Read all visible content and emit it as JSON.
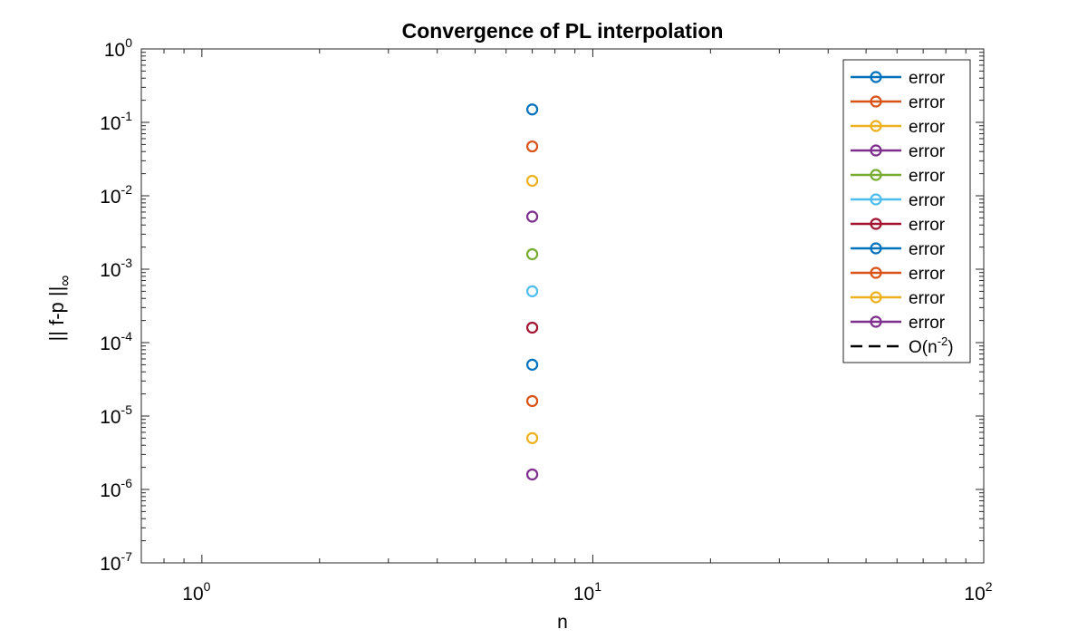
{
  "chart_data": {
    "type": "scatter",
    "title": "Convergence of PL interpolation",
    "xlabel": "n",
    "ylabel": {
      "text": "|| f-p ||",
      "subscript": "∞"
    },
    "xscale": "log",
    "yscale": "log",
    "xlim": [
      0.7,
      100
    ],
    "ylim": [
      1e-07,
      1
    ],
    "grid": false,
    "x_ticks": [
      {
        "value": 1,
        "base": "10",
        "exp": "0"
      },
      {
        "value": 10,
        "base": "10",
        "exp": "1"
      },
      {
        "value": 100,
        "base": "10",
        "exp": "2"
      }
    ],
    "y_ticks": [
      {
        "value": 1,
        "base": "10",
        "exp": "0"
      },
      {
        "value": 0.1,
        "base": "10",
        "exp": "-1"
      },
      {
        "value": 0.01,
        "base": "10",
        "exp": "-2"
      },
      {
        "value": 0.001,
        "base": "10",
        "exp": "-3"
      },
      {
        "value": 0.0001,
        "base": "10",
        "exp": "-4"
      },
      {
        "value": 1e-05,
        "base": "10",
        "exp": "-5"
      },
      {
        "value": 1e-06,
        "base": "10",
        "exp": "-6"
      },
      {
        "value": 1e-07,
        "base": "10",
        "exp": "-7"
      }
    ],
    "series": [
      {
        "name": "error",
        "color": "#0072BD",
        "x": [
          7
        ],
        "y": [
          0.15
        ]
      },
      {
        "name": "error",
        "color": "#D95319",
        "x": [
          7
        ],
        "y": [
          0.047
        ]
      },
      {
        "name": "error",
        "color": "#EDB120",
        "x": [
          7
        ],
        "y": [
          0.016
        ]
      },
      {
        "name": "error",
        "color": "#7E2F8E",
        "x": [
          7
        ],
        "y": [
          0.0052
        ]
      },
      {
        "name": "error",
        "color": "#77AC30",
        "x": [
          7
        ],
        "y": [
          0.0016
        ]
      },
      {
        "name": "error",
        "color": "#4DBEEE",
        "x": [
          7
        ],
        "y": [
          0.0005
        ]
      },
      {
        "name": "error",
        "color": "#A2142F",
        "x": [
          7
        ],
        "y": [
          0.00016
        ]
      },
      {
        "name": "error",
        "color": "#0072BD",
        "x": [
          7
        ],
        "y": [
          5e-05
        ]
      },
      {
        "name": "error",
        "color": "#D95319",
        "x": [
          7
        ],
        "y": [
          1.6e-05
        ]
      },
      {
        "name": "error",
        "color": "#EDB120",
        "x": [
          7
        ],
        "y": [
          5e-06
        ]
      },
      {
        "name": "error",
        "color": "#7E2F8E",
        "x": [
          7
        ],
        "y": [
          1.6e-06
        ]
      }
    ],
    "reference_line": {
      "label_base": "O(n",
      "label_exp": "-2",
      "label_end": ")",
      "color": "#000000",
      "style": "dashed",
      "x": [],
      "y": []
    },
    "legend_position": "top-right"
  }
}
